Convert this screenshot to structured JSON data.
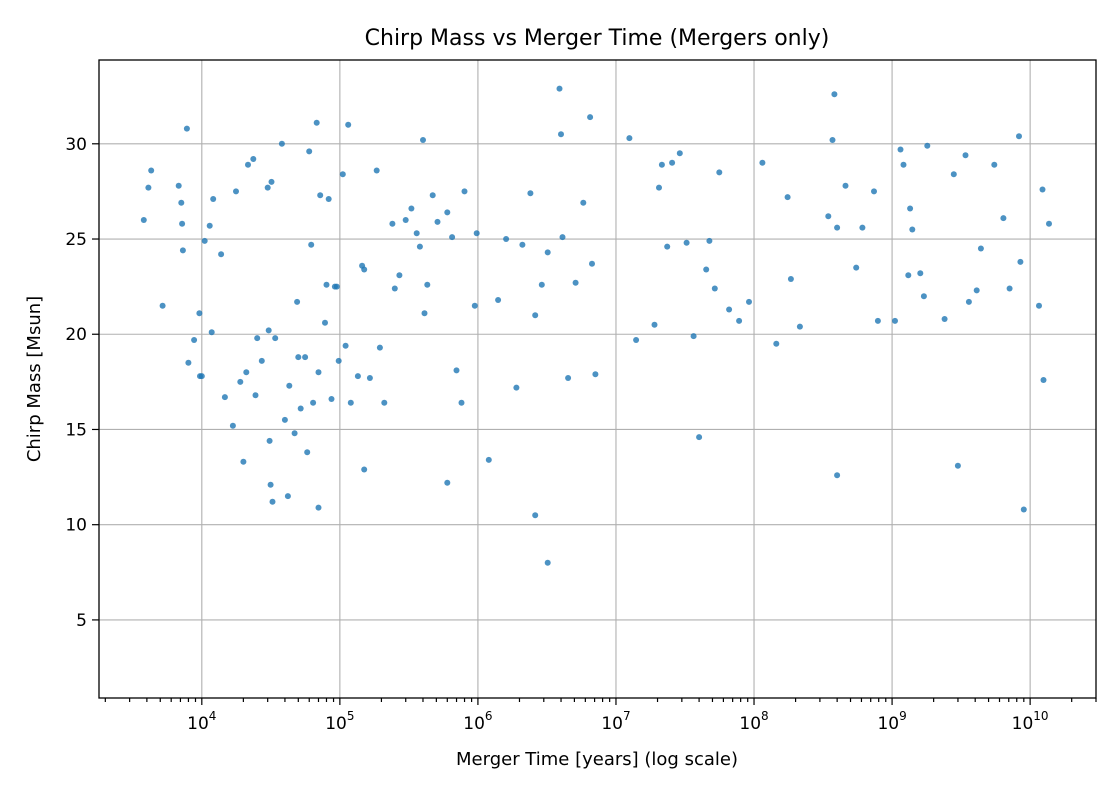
{
  "chart_data": {
    "type": "scatter",
    "title": "Chirp Mass vs Merger Time (Mergers only)",
    "xlabel": "Merger Time [years] (log scale)",
    "ylabel": "Chirp Mass [Msun]",
    "xscale": "log",
    "xlim": [
      1800,
      30000000000
    ],
    "ylim": [
      0.9,
      34.4
    ],
    "grid": true,
    "x_ticks": [
      {
        "value": 10000,
        "base": "10",
        "exp": "4"
      },
      {
        "value": 100000,
        "base": "10",
        "exp": "5"
      },
      {
        "value": 1000000,
        "base": "10",
        "exp": "6"
      },
      {
        "value": 10000000,
        "base": "10",
        "exp": "7"
      },
      {
        "value": 100000000,
        "base": "10",
        "exp": "8"
      },
      {
        "value": 1000000000,
        "base": "10",
        "exp": "9"
      },
      {
        "value": 10000000000,
        "base": "10",
        "exp": "10"
      }
    ],
    "y_ticks": [
      {
        "value": 5,
        "label": "5"
      },
      {
        "value": 10,
        "label": "10"
      },
      {
        "value": 15,
        "label": "15"
      },
      {
        "value": 20,
        "label": "20"
      },
      {
        "value": 25,
        "label": "25"
      },
      {
        "value": 30,
        "label": "30"
      }
    ],
    "marker_color": "#1f77b4",
    "series": [
      {
        "name": "",
        "points": [
          [
            3800,
            26.0
          ],
          [
            4100,
            27.7
          ],
          [
            4300,
            28.6
          ],
          [
            5200,
            21.5
          ],
          [
            6800,
            27.8
          ],
          [
            7100,
            26.9
          ],
          [
            7200,
            25.8
          ],
          [
            7300,
            24.4
          ],
          [
            7800,
            30.8
          ],
          [
            8000,
            18.5
          ],
          [
            8800,
            19.7
          ],
          [
            9600,
            21.1
          ],
          [
            9700,
            17.8
          ],
          [
            10000,
            17.8
          ],
          [
            10500,
            24.9
          ],
          [
            11400,
            25.7
          ],
          [
            12100,
            27.1
          ],
          [
            11800,
            20.1
          ],
          [
            13800,
            24.2
          ],
          [
            14700,
            16.7
          ],
          [
            16800,
            15.2
          ],
          [
            17700,
            27.5
          ],
          [
            19000,
            17.5
          ],
          [
            20000,
            13.3
          ],
          [
            21000,
            18.0
          ],
          [
            21600,
            28.9
          ],
          [
            23600,
            29.2
          ],
          [
            24500,
            16.8
          ],
          [
            25200,
            19.8
          ],
          [
            27200,
            18.6
          ],
          [
            30000,
            27.7
          ],
          [
            32000,
            28.0
          ],
          [
            30500,
            20.2
          ],
          [
            34000,
            19.8
          ],
          [
            31000,
            14.4
          ],
          [
            31500,
            12.1
          ],
          [
            32500,
            11.2
          ],
          [
            38000,
            30.0
          ],
          [
            40000,
            15.5
          ],
          [
            42000,
            11.5
          ],
          [
            43000,
            17.3
          ],
          [
            47000,
            14.8
          ],
          [
            49000,
            21.7
          ],
          [
            50000,
            18.8
          ],
          [
            52000,
            16.1
          ],
          [
            56000,
            18.8
          ],
          [
            58000,
            13.8
          ],
          [
            60000,
            29.6
          ],
          [
            62000,
            24.7
          ],
          [
            64000,
            16.4
          ],
          [
            68000,
            31.1
          ],
          [
            70000,
            18.0
          ],
          [
            72000,
            27.3
          ],
          [
            78000,
            20.6
          ],
          [
            80000,
            22.6
          ],
          [
            83000,
            27.1
          ],
          [
            87000,
            16.6
          ],
          [
            92000,
            22.5
          ],
          [
            95000,
            22.5
          ],
          [
            98000,
            18.6
          ],
          [
            105000,
            28.4
          ],
          [
            110000,
            19.4
          ],
          [
            115000,
            31.0
          ],
          [
            120000,
            16.4
          ],
          [
            135000,
            17.8
          ],
          [
            145000,
            23.6
          ],
          [
            150000,
            23.4
          ],
          [
            165000,
            17.7
          ],
          [
            185000,
            28.6
          ],
          [
            195000,
            19.3
          ],
          [
            210000,
            16.4
          ],
          [
            240000,
            25.8
          ],
          [
            250000,
            22.4
          ],
          [
            270000,
            23.1
          ],
          [
            300000,
            26.0
          ],
          [
            330000,
            26.6
          ],
          [
            360000,
            25.3
          ],
          [
            380000,
            24.6
          ],
          [
            400000,
            30.2
          ],
          [
            410000,
            21.1
          ],
          [
            430000,
            22.6
          ],
          [
            470000,
            27.3
          ],
          [
            510000,
            25.9
          ],
          [
            600000,
            26.4
          ],
          [
            650000,
            25.1
          ],
          [
            700000,
            18.1
          ],
          [
            760000,
            16.4
          ],
          [
            800000,
            27.5
          ],
          [
            950000,
            21.5
          ],
          [
            980000,
            25.3
          ],
          [
            1400000,
            21.8
          ],
          [
            1600000,
            25.0
          ],
          [
            1900000,
            17.2
          ],
          [
            2100000,
            24.7
          ],
          [
            2400000,
            27.4
          ],
          [
            2600000,
            21.0
          ],
          [
            2900000,
            22.6
          ],
          [
            3200000,
            24.3
          ],
          [
            3900000,
            32.9
          ],
          [
            4000000,
            30.5
          ],
          [
            4100000,
            25.1
          ],
          [
            4500000,
            17.7
          ],
          [
            5100000,
            22.7
          ],
          [
            5800000,
            26.9
          ],
          [
            6500000,
            31.4
          ],
          [
            6700000,
            23.7
          ],
          [
            7100000,
            17.9
          ],
          [
            12500000,
            30.3
          ],
          [
            14000000,
            19.7
          ],
          [
            19000000,
            20.5
          ],
          [
            20500000,
            27.7
          ],
          [
            21500000,
            28.9
          ],
          [
            23500000,
            24.6
          ],
          [
            25500000,
            29.0
          ],
          [
            29000000,
            29.5
          ],
          [
            32500000,
            24.8
          ],
          [
            36500000,
            19.9
          ],
          [
            45000000,
            23.4
          ],
          [
            47500000,
            24.9
          ],
          [
            52000000,
            22.4
          ],
          [
            56000000,
            28.5
          ],
          [
            66000000,
            21.3
          ],
          [
            78000000,
            20.7
          ],
          [
            92000000,
            21.7
          ],
          [
            115000000,
            29.0
          ],
          [
            145000000,
            19.5
          ],
          [
            175000000,
            27.2
          ],
          [
            185000000,
            22.9
          ],
          [
            215000000,
            20.4
          ],
          [
            345000000,
            26.2
          ],
          [
            370000000,
            30.2
          ],
          [
            382000000,
            32.6
          ],
          [
            400000000,
            25.6
          ],
          [
            460000000,
            27.8
          ],
          [
            550000000,
            23.5
          ],
          [
            610000000,
            25.6
          ],
          [
            740000000,
            27.5
          ],
          [
            790000000,
            20.7
          ],
          [
            1050000000,
            20.7
          ],
          [
            1150000000,
            29.7
          ],
          [
            1210000000,
            28.9
          ],
          [
            1310000000,
            23.1
          ],
          [
            1350000000,
            26.6
          ],
          [
            1400000000,
            25.5
          ],
          [
            1600000000,
            23.2
          ],
          [
            1700000000,
            22.0
          ],
          [
            1800000000,
            29.9
          ],
          [
            2400000000,
            20.8
          ],
          [
            2800000000,
            28.4
          ],
          [
            3400000000,
            29.4
          ],
          [
            3600000000,
            21.7
          ],
          [
            4100000000,
            22.3
          ],
          [
            4400000000,
            24.5
          ],
          [
            5500000000,
            28.9
          ],
          [
            6400000000,
            26.1
          ],
          [
            7100000000,
            22.4
          ],
          [
            8300000000,
            30.4
          ],
          [
            8500000000,
            23.8
          ],
          [
            11600000000,
            21.5
          ],
          [
            12300000000,
            27.6
          ],
          [
            12500000000,
            17.6
          ],
          [
            13700000000,
            25.8
          ],
          [
            2600000,
            10.5
          ],
          [
            3200000,
            8.0
          ],
          [
            600000,
            12.2
          ],
          [
            1200000,
            13.4
          ],
          [
            40000000,
            14.6
          ],
          [
            400000000,
            12.6
          ],
          [
            3000000000,
            13.1
          ],
          [
            9000000000,
            10.8
          ],
          [
            150000,
            12.9
          ],
          [
            70000,
            10.9
          ]
        ]
      }
    ]
  }
}
